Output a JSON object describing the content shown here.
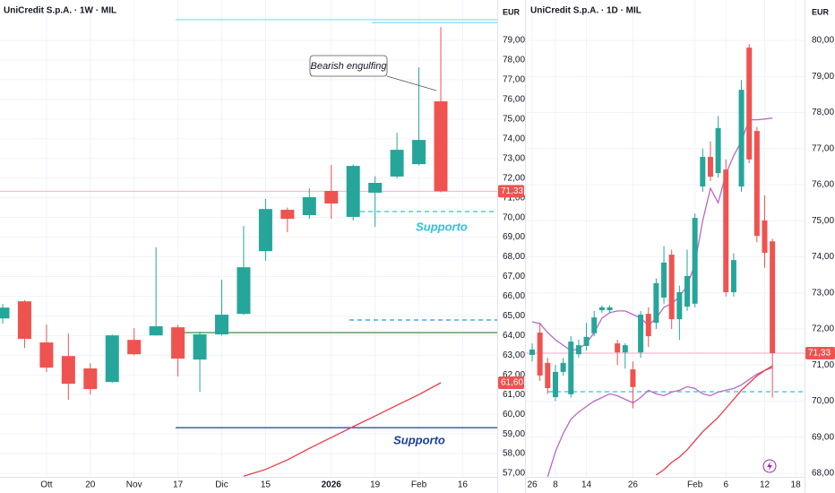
{
  "chart_data": [
    {
      "type": "candlestick",
      "title": "UniCredit S.p.A. · 1W · MIL",
      "currency": "EUR",
      "up_color": "#26a69a",
      "down_color": "#ef5350",
      "categories": [
        null,
        null,
        "Ott",
        null,
        "20",
        null,
        "Nov",
        null,
        "17",
        null,
        "Dic",
        null,
        "15",
        null,
        null,
        "2026",
        null,
        "19",
        null,
        "Feb",
        null,
        "16"
      ],
      "open": [
        64.87,
        65.74,
        63.65,
        62.96,
        62.33,
        61.64,
        63.78,
        64.01,
        64.42,
        62.78,
        64.06,
        65.1,
        68.29,
        70.39,
        70.12,
        71.35,
        70.03,
        71.26,
        72.08,
        72.71,
        75.9,
        null
      ],
      "high": [
        65.6,
        65.8,
        64.56,
        64.1,
        62.6,
        64.05,
        64.38,
        68.48,
        64.55,
        64.2,
        66.84,
        69.57,
        70.94,
        70.5,
        71.48,
        72.67,
        72.7,
        72.1,
        74.3,
        77.63,
        79.68,
        null
      ],
      "low": [
        64.6,
        63.37,
        62.14,
        60.73,
        61.0,
        61.6,
        63.0,
        64.0,
        61.92,
        61.14,
        64.0,
        65.05,
        67.8,
        69.25,
        69.93,
        69.93,
        69.85,
        69.52,
        72.0,
        72.65,
        71.28,
        null
      ],
      "close": [
        65.42,
        63.83,
        62.37,
        61.55,
        61.28,
        64.01,
        63.05,
        64.47,
        62.83,
        64.06,
        65.06,
        67.47,
        70.43,
        69.93,
        71.03,
        70.71,
        72.62,
        71.76,
        73.44,
        73.94,
        71.33,
        null
      ],
      "ylim": [
        56.82,
        81.05
      ],
      "yticks": [
        {
          "value": 57,
          "label": "57,00"
        },
        {
          "value": 58,
          "label": "58,00"
        },
        {
          "value": 59,
          "label": "59,00"
        },
        {
          "value": 60,
          "label": "60,00"
        },
        {
          "value": 61,
          "label": "61,00"
        },
        {
          "value": 62,
          "label": "62,00"
        },
        {
          "value": 63,
          "label": "63,00"
        },
        {
          "value": 64,
          "label": "64,00"
        },
        {
          "value": 65,
          "label": "65,00"
        },
        {
          "value": 66,
          "label": "66,00"
        },
        {
          "value": 67,
          "label": "67,00"
        },
        {
          "value": 68,
          "label": "68,00"
        },
        {
          "value": 69,
          "label": "69,00"
        },
        {
          "value": 70,
          "label": "70,00"
        },
        {
          "value": 71,
          "label": "71,00"
        },
        {
          "value": 72,
          "label": "72,00"
        },
        {
          "value": 73,
          "label": "73,00"
        },
        {
          "value": 74,
          "label": "74,00"
        },
        {
          "value": 75,
          "label": "75,00"
        },
        {
          "value": 76,
          "label": "76,00"
        },
        {
          "value": 77,
          "label": "77,00"
        },
        {
          "value": 78,
          "label": "78,00"
        },
        {
          "value": 79,
          "label": "79,00"
        }
      ],
      "lines": [
        {
          "color": "#f23645",
          "values": [
            null,
            null,
            null,
            null,
            null,
            null,
            null,
            null,
            null,
            null,
            null,
            56.85,
            57.2,
            57.68,
            58.27,
            58.82,
            59.37,
            59.91,
            60.46,
            61.0,
            61.6,
            null
          ]
        }
      ],
      "levels": [
        {
          "value": 80.05,
          "color": "#80deea",
          "style": "solid"
        },
        {
          "value": 79.9,
          "color": "#80deea",
          "style": "solid"
        },
        {
          "value": 71.33,
          "color": "#f8bbd0",
          "style": "solid"
        },
        {
          "value": 70.3,
          "color": "#26c6da",
          "style": "dashed"
        },
        {
          "value": 64.79,
          "color": "#2196f3",
          "style": "dashed"
        },
        {
          "value": 64.15,
          "color": "#2e7d32",
          "style": "solid"
        },
        {
          "value": 59.32,
          "color": "#1a3fa0",
          "style": "solid"
        }
      ],
      "price_labels": [
        {
          "value": 71.33,
          "label": "71,33",
          "color": "#ef5350"
        },
        {
          "value": 61.6,
          "label": "61,60",
          "color": "#ef5350"
        }
      ],
      "annotations": [
        "Bearish engulfing",
        "Supporto",
        "Supporto"
      ]
    },
    {
      "type": "candlestick",
      "title": "UniCredit S.p.A. · 1D · MIL",
      "currency": "EUR",
      "up_color": "#26a69a",
      "down_color": "#ef5350",
      "categories": [
        "26",
        null,
        null,
        "8",
        null,
        null,
        null,
        "14",
        null,
        null,
        null,
        null,
        null,
        "26",
        null,
        null,
        null,
        null,
        null,
        null,
        null,
        "Feb",
        null,
        null,
        null,
        "6",
        null,
        null,
        null,
        null,
        "12",
        null,
        null,
        null,
        "18"
      ],
      "open": [
        71.28,
        71.9,
        71.06,
        70.11,
        70.81,
        70.19,
        71.3,
        71.53,
        71.88,
        72.52,
        72.52,
        71.6,
        71.35,
        70.88,
        71.35,
        72.42,
        72.17,
        72.87,
        74.06,
        72.27,
        72.62,
        72.7,
        75.95,
        76.77,
        76.32,
        76.42,
        73.02,
        75.95,
        79.8,
        77.49,
        75.01,
        74.43,
        null,
        null,
        null
      ],
      "high": [
        71.6,
        72.17,
        71.2,
        71.0,
        71.2,
        71.8,
        71.7,
        72.17,
        72.5,
        72.65,
        72.65,
        71.7,
        71.6,
        71.1,
        72.5,
        72.6,
        73.4,
        74.3,
        74.2,
        73.2,
        74.2,
        75.2,
        77.0,
        77.2,
        77.9,
        76.7,
        74.1,
        78.9,
        79.9,
        77.6,
        75.7,
        74.5,
        null,
        null,
        null
      ],
      "low": [
        71.1,
        70.56,
        70.2,
        70.0,
        70.7,
        70.1,
        71.2,
        71.4,
        71.8,
        72.45,
        72.45,
        71.0,
        70.9,
        69.8,
        71.2,
        71.5,
        72.0,
        72.7,
        72.0,
        71.7,
        72.5,
        72.6,
        75.8,
        76.1,
        76.2,
        72.9,
        72.9,
        75.8,
        76.6,
        74.4,
        73.7,
        70.1,
        null,
        null,
        null
      ],
      "close": [
        71.43,
        70.71,
        70.36,
        70.81,
        71.06,
        71.65,
        71.55,
        71.78,
        72.32,
        72.6,
        72.6,
        71.35,
        71.55,
        70.39,
        72.4,
        71.8,
        73.27,
        73.84,
        72.27,
        73.02,
        73.47,
        75.08,
        76.77,
        76.22,
        77.57,
        73.02,
        73.91,
        78.63,
        76.7,
        74.58,
        74.11,
        71.33,
        null,
        null,
        null
      ],
      "ylim": [
        67.9,
        81.12
      ],
      "yticks": [
        {
          "value": 68,
          "label": "68,00"
        },
        {
          "value": 69,
          "label": "69,00"
        },
        {
          "value": 70,
          "label": "70,00"
        },
        {
          "value": 71,
          "label": "71,00"
        },
        {
          "value": 72,
          "label": "72,00"
        },
        {
          "value": 73,
          "label": "73,00"
        },
        {
          "value": 74,
          "label": "74,00"
        },
        {
          "value": 75,
          "label": "75,00"
        },
        {
          "value": 76,
          "label": "76,00"
        },
        {
          "value": 77,
          "label": "77,00"
        },
        {
          "value": 78,
          "label": "78,00"
        },
        {
          "value": 79,
          "label": "79,00"
        },
        {
          "value": 80,
          "label": "80,00"
        }
      ],
      "lines": [
        {
          "color": "#ba68c8",
          "values": [
            72.2,
            72.15,
            71.9,
            71.7,
            71.55,
            71.4,
            71.45,
            71.6,
            71.9,
            72.3,
            72.45,
            72.5,
            72.5,
            72.4,
            72.3,
            72.1,
            72.3,
            72.6,
            72.7,
            72.9,
            73.2,
            73.8,
            75.0,
            75.9,
            75.5,
            76.3,
            76.8,
            77.2,
            77.8,
            77.8,
            77.82,
            77.85,
            null,
            null,
            null
          ]
        },
        {
          "color": "#ba68c8",
          "values": [
            null,
            null,
            67.9,
            68.6,
            69.1,
            69.5,
            69.7,
            69.85,
            70.0,
            70.1,
            70.2,
            70.15,
            70.05,
            69.95,
            70.1,
            70.3,
            70.2,
            70.15,
            70.25,
            70.3,
            70.4,
            70.35,
            70.2,
            70.15,
            70.25,
            70.3,
            70.35,
            70.45,
            70.6,
            70.75,
            70.85,
            70.93,
            null,
            null,
            null
          ]
        },
        {
          "color": "#f23645",
          "values": [
            null,
            null,
            null,
            null,
            null,
            null,
            null,
            null,
            null,
            null,
            null,
            null,
            null,
            null,
            null,
            null,
            67.95,
            68.1,
            68.3,
            68.45,
            68.65,
            68.9,
            69.15,
            69.35,
            69.55,
            69.8,
            70.05,
            70.3,
            70.5,
            70.7,
            70.85,
            70.98,
            null,
            null,
            null
          ]
        }
      ],
      "levels": [
        {
          "value": 71.33,
          "color": "#f8bbd0",
          "style": "solid"
        },
        {
          "value": 70.26,
          "color": "#26c6da",
          "style": "dashed"
        }
      ],
      "price_labels": [
        {
          "value": 71.33,
          "label": "71,33",
          "color": "#ef5350"
        }
      ],
      "annotations": []
    }
  ]
}
